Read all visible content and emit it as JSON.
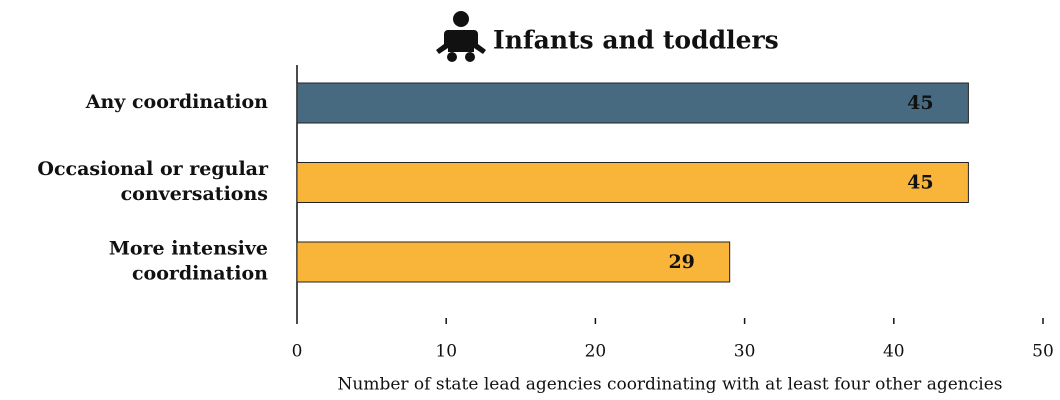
{
  "chart_data": {
    "type": "bar",
    "orientation": "horizontal",
    "title": "Infants and toddlers",
    "categories": [
      "Any coordination",
      "Occasional or regular conversations",
      "More intensive coordination"
    ],
    "values": [
      45,
      45,
      29
    ],
    "colors": [
      "#476a80",
      "#f8b53a",
      "#f8b53a"
    ],
    "label_colors": [
      "#ffffff",
      "#111111",
      "#111111"
    ],
    "xlim": [
      0,
      50
    ],
    "xticks": [
      0,
      10,
      20,
      30,
      40,
      50
    ],
    "xlabel": "Number of state lead agencies coordinating with at least four other agencies",
    "grid": false
  }
}
